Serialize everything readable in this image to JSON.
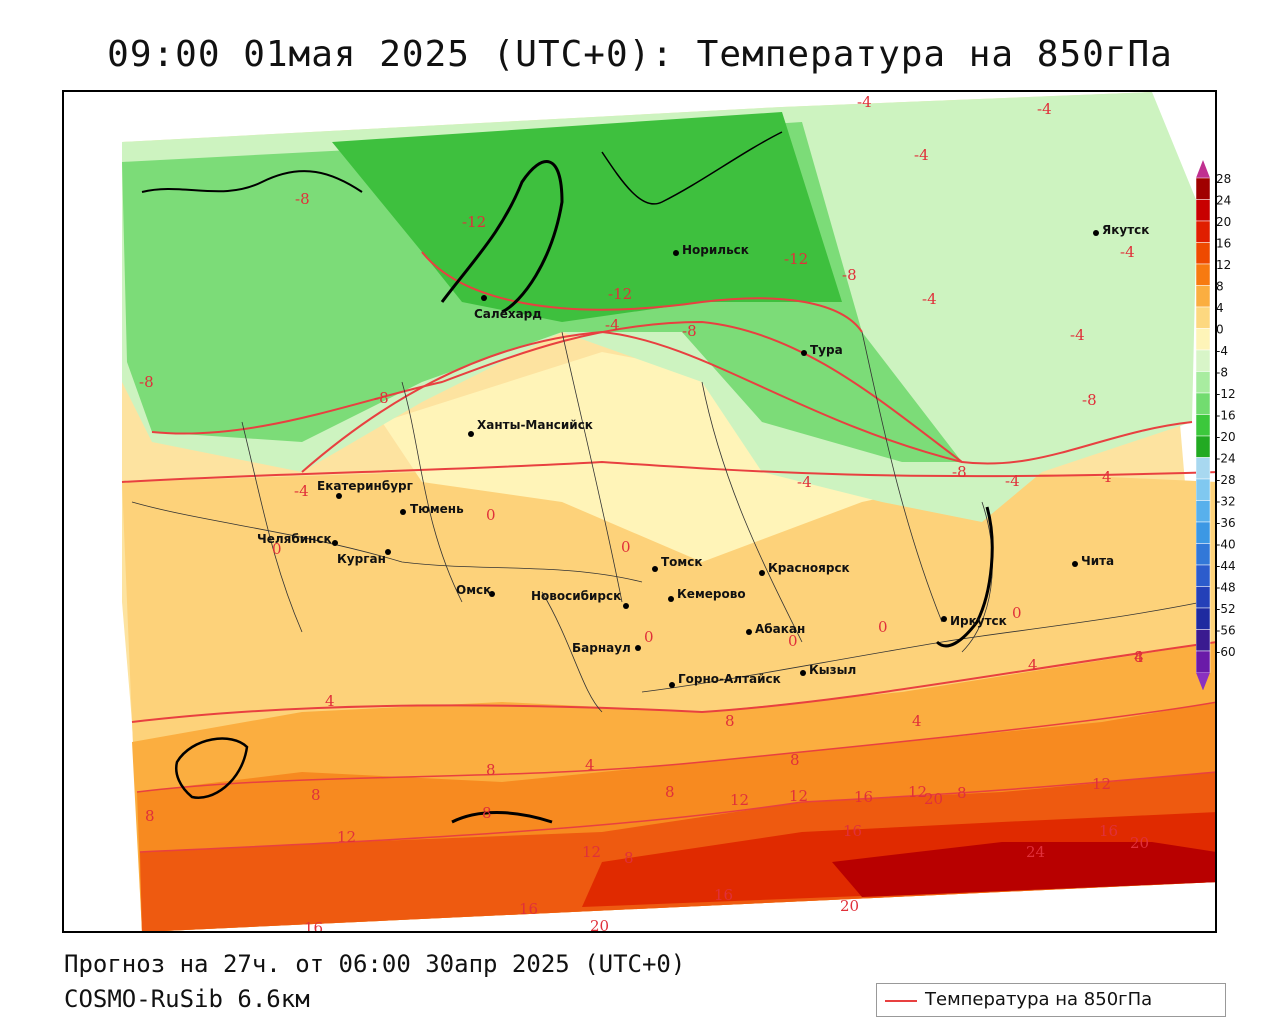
{
  "title": "09:00 01мая 2025 (UTC+0): Температура на 850гПа",
  "forecast_line": "Прогноз на 27ч. от 06:00 30апр 2025 (UTC+0)",
  "model_line": "COSMO-RuSib 6.6км",
  "legend": {
    "label": "Температура на 850гПа",
    "color": "#e84040"
  },
  "scale": {
    "values": [
      "28",
      "24",
      "20",
      "16",
      "12",
      "8",
      "4",
      "0",
      "-4",
      "-8",
      "-12",
      "-16",
      "-20",
      "-24",
      "-28",
      "-32",
      "-36",
      "-40",
      "-44",
      "-48",
      "-52",
      "-56",
      "-60"
    ],
    "colors": [
      "#a00000",
      "#c80000",
      "#e01e00",
      "#ee4a00",
      "#f77a10",
      "#fbae40",
      "#fdd880",
      "#fef4b8",
      "#d8f5c8",
      "#a8eca0",
      "#72dc70",
      "#3cc83c",
      "#22aa22",
      "#a8d8f0",
      "#80c8f0",
      "#58b0ec",
      "#3c98e4",
      "#3278d8",
      "#2c5ccc",
      "#2440b8",
      "#1e2aa0",
      "#3a1a90",
      "#6a1aa8"
    ]
  },
  "cities": [
    {
      "name": "Якутск"
    },
    {
      "name": "Норильск"
    },
    {
      "name": "Салехард"
    },
    {
      "name": "Тура"
    },
    {
      "name": "Ханты-Мансийск"
    },
    {
      "name": "Екатеринбург"
    },
    {
      "name": "Тюмень"
    },
    {
      "name": "Челябинск"
    },
    {
      "name": "Курган"
    },
    {
      "name": "Омск"
    },
    {
      "name": "Новосибирск"
    },
    {
      "name": "Томск"
    },
    {
      "name": "Кемерово"
    },
    {
      "name": "Красноярск"
    },
    {
      "name": "Барнаул"
    },
    {
      "name": "Абакан"
    },
    {
      "name": "Горно-Алтайск"
    },
    {
      "name": "Кызыл"
    },
    {
      "name": "Иркутск"
    },
    {
      "name": "Чита"
    }
  ],
  "isotherm_labels": [
    "-4",
    "-4",
    "-4",
    "-4",
    "-4",
    "-4",
    "-4",
    "-4",
    "-4",
    "-4",
    "-8",
    "-8",
    "-8",
    "-8",
    "-8",
    "-8",
    "-8",
    "-12",
    "-12",
    "-12",
    "0",
    "0",
    "0",
    "0",
    "0",
    "0",
    "0",
    "4",
    "4",
    "4",
    "4",
    "4",
    "4",
    "8",
    "8",
    "8",
    "8",
    "8",
    "8",
    "8",
    "8",
    "8",
    "8",
    "12",
    "12",
    "12",
    "12",
    "12",
    "12",
    "16",
    "16",
    "16",
    "16",
    "16",
    "16",
    "20",
    "20",
    "20",
    "20",
    "24"
  ]
}
